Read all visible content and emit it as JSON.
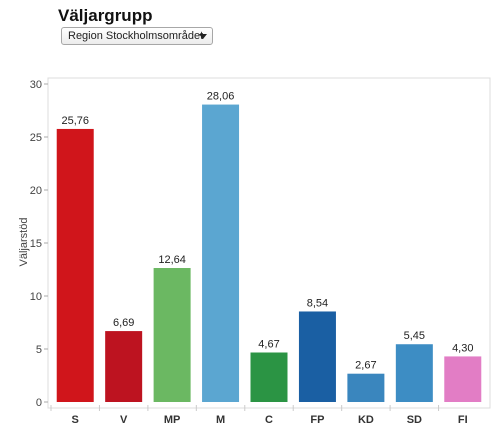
{
  "header": {
    "title": "Väljargrupp"
  },
  "filter": {
    "selected": "Region Stockholmsområdet"
  },
  "chart_data": {
    "type": "bar",
    "ylabel": "Väljarstöd",
    "ylim": [
      0,
      30
    ],
    "yticks": [
      0,
      5,
      10,
      15,
      20,
      25,
      30
    ],
    "grid": false,
    "categories": [
      "S",
      "V",
      "MP",
      "M",
      "C",
      "FP",
      "KD",
      "SD",
      "FI"
    ],
    "values": [
      25.76,
      6.69,
      12.64,
      28.06,
      4.67,
      8.54,
      2.67,
      5.45,
      4.3
    ],
    "value_labels": [
      "25,76",
      "6,69",
      "12,64",
      "28,06",
      "4,67",
      "8,54",
      "2,67",
      "5,45",
      "4,30"
    ],
    "colors": [
      "#d0151b",
      "#bd1320",
      "#6bb862",
      "#5ba6d1",
      "#2b9444",
      "#1a5fa3",
      "#3a86be",
      "#3d8dc4",
      "#e27dc5"
    ]
  }
}
